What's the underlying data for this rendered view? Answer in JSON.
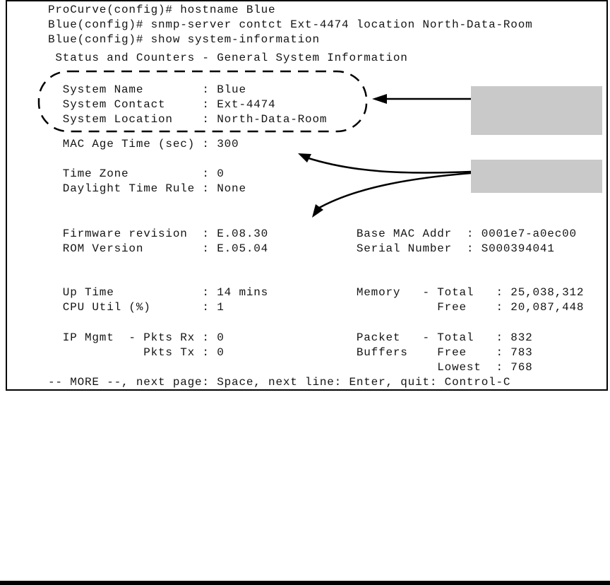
{
  "console": {
    "lines": [
      "ProCurve(config)# hostname Blue",
      "Blue(config)# snmp-server contct Ext-4474 location North-Data-Room",
      "Blue(config)# show system-information",
      " Status and Counters - General System Information",
      "  System Name        : Blue",
      "  System Contact     : Ext-4474",
      "  System Location    : North-Data-Room",
      "  MAC Age Time (sec) : 300",
      "  Time Zone          : 0",
      "  Daylight Time Rule : None",
      "  Firmware revision  : E.08.30            Base MAC Addr  : 0001e7-a0ec00",
      "  ROM Version        : E.05.04            Serial Number  : S000394041",
      "  Up Time            : 14 mins            Memory   - Total   : 25,038,312",
      "  CPU Util (%)       : 1                             Free    : 20,087,448",
      "  IP Mgmt  - Pkts Rx : 0                  Packet   - Total   : 832",
      "             Pkts Tx : 0                  Buffers    Free    : 783",
      "                                                     Lowest  : 768",
      "-- MORE --, next page: Space, next line: Enter, quit: Control-C"
    ]
  },
  "annotations": {
    "callout_box_1_text": "",
    "callout_box_2_text": ""
  },
  "colors": {
    "console_border": "#000000",
    "console_text": "#141414",
    "callout_fill": "#c9c9c9",
    "highlight_stroke": "#000000",
    "arrow_stroke": "#000000",
    "page_bar": "#000000"
  }
}
